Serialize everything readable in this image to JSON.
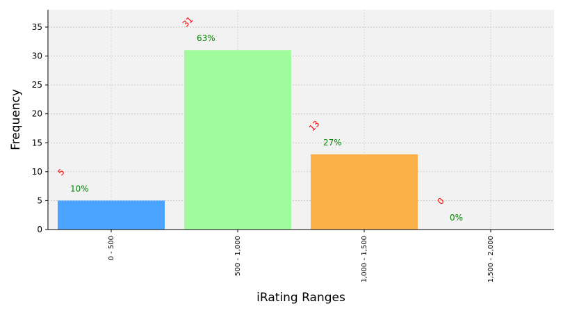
{
  "chart_data": {
    "type": "bar",
    "categories": [
      "0 - 500",
      "500 - 1,000",
      "1,000 - 1,500",
      "1,500 - 2,000"
    ],
    "values": [
      5,
      31,
      13,
      0
    ],
    "count_labels": [
      "5",
      "31",
      "13",
      "0"
    ],
    "percent_labels": [
      "10%",
      "63%",
      "27%",
      "0%"
    ],
    "bar_colors": [
      "#4aa3ff",
      "#a0fb9c",
      "#fcb049",
      "#c8a0f0"
    ],
    "count_label_color": "#ff0000",
    "percent_label_color": "#008000",
    "plot_background": "#f2f2f2",
    "xlabel": "iRating Ranges",
    "ylabel": "Frequency",
    "ylim": [
      0,
      38
    ],
    "yticks": [
      0,
      5,
      10,
      15,
      20,
      25,
      30,
      35
    ],
    "grid": true,
    "legend": "none"
  }
}
